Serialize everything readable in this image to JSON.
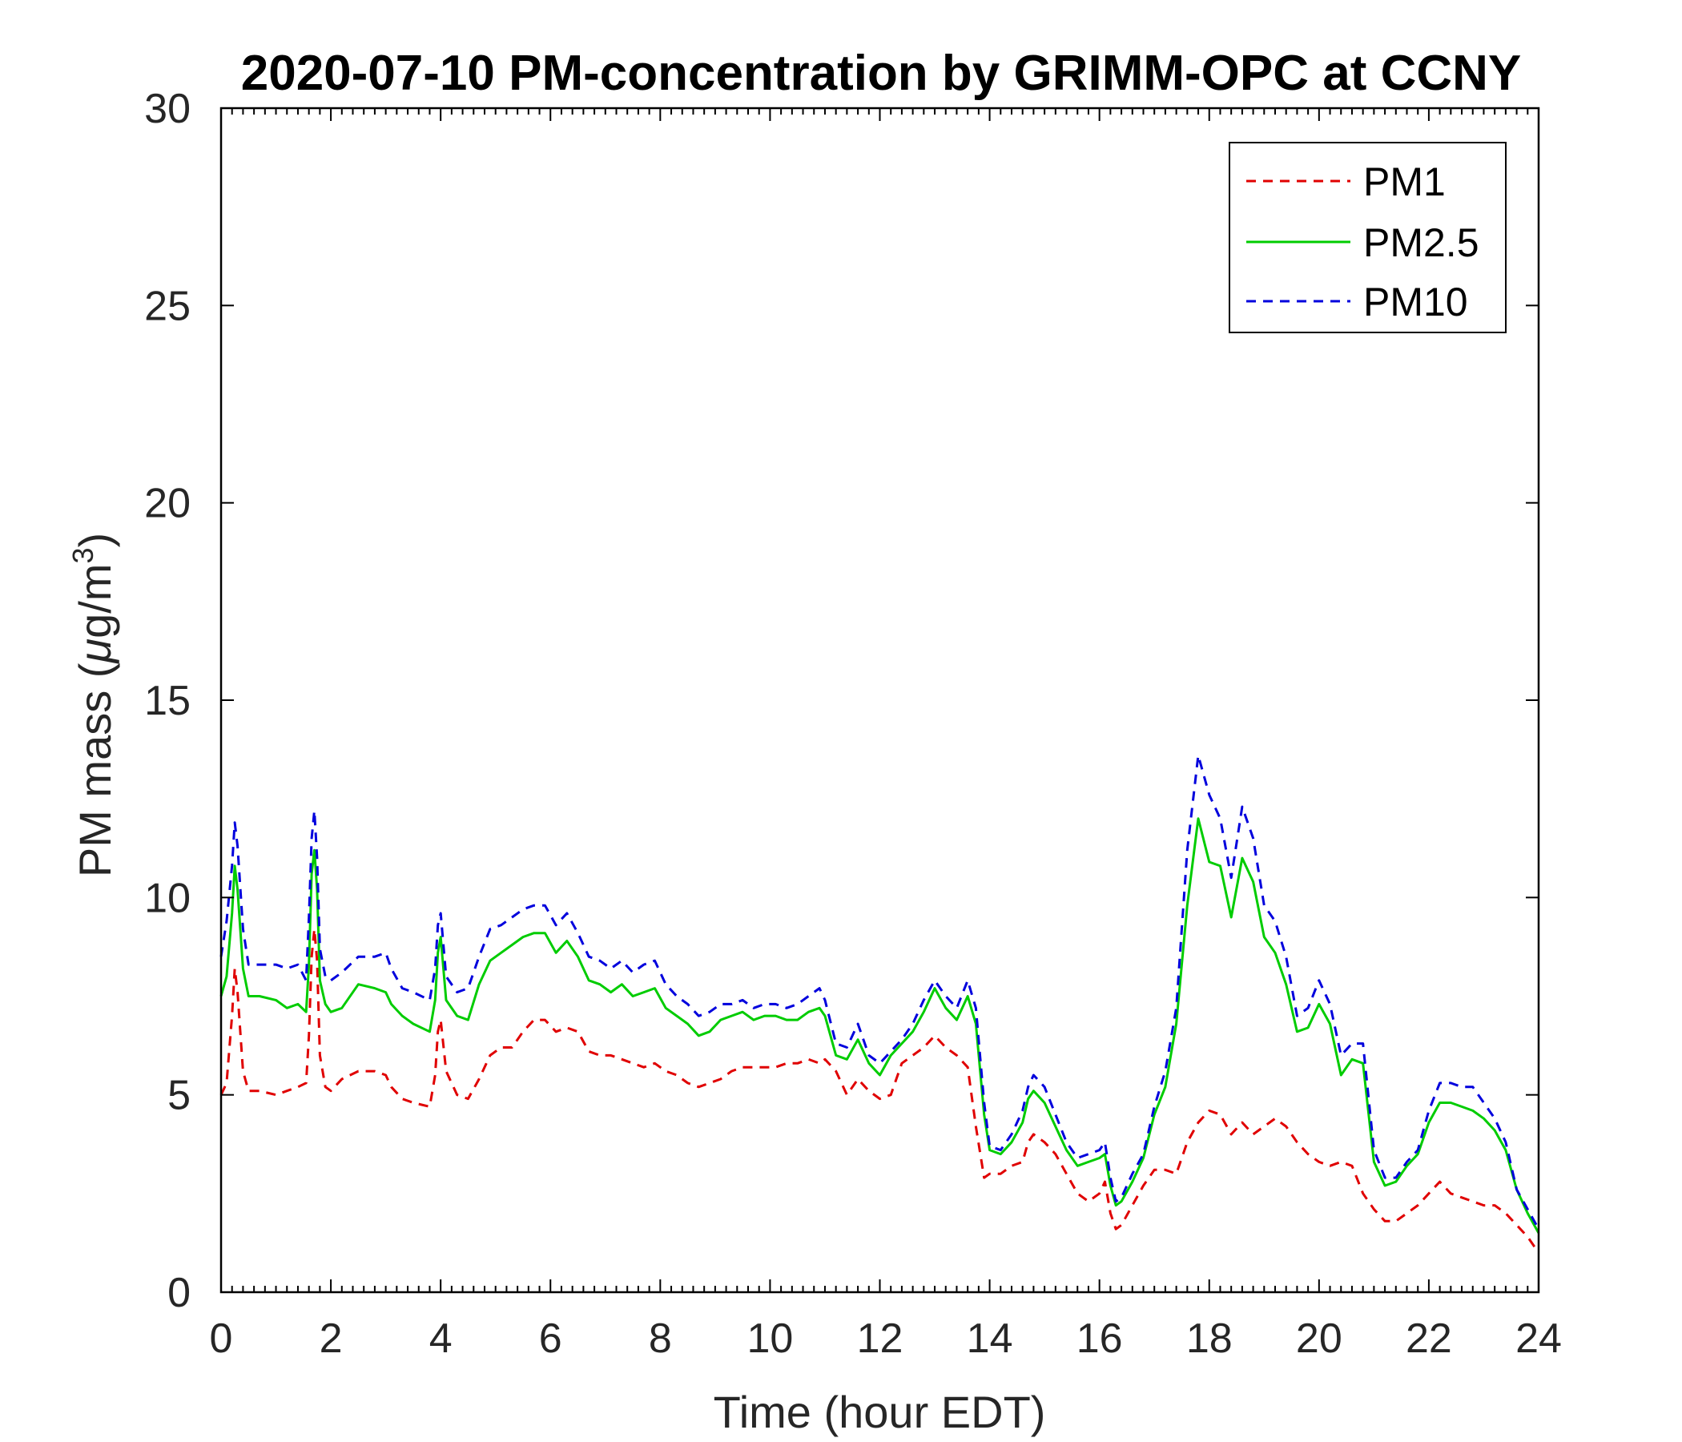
{
  "chart_data": {
    "type": "line",
    "title": "2020-07-10 PM-concentration by GRIMM-OPC at CCNY",
    "xlabel": "Time (hour EDT)",
    "ylabel": "PM mass (",
    "ylabel_mu": "μ",
    "ylabel_unit": "g/m",
    "ylabel_sup": "3",
    "ylabel_close": ")",
    "xlim": [
      0,
      24
    ],
    "ylim": [
      0,
      30
    ],
    "x_ticks": [
      "0",
      "2",
      "4",
      "6",
      "8",
      "10",
      "12",
      "14",
      "16",
      "18",
      "20",
      "22",
      "24"
    ],
    "y_ticks": [
      "0",
      "5",
      "10",
      "15",
      "20",
      "25",
      "30"
    ],
    "grid": false,
    "legend_position": "top-right",
    "series": [
      {
        "name": "PM1",
        "color": "#e00000",
        "style": "dashed",
        "x": [
          0,
          0.1,
          0.2,
          0.25,
          0.3,
          0.4,
          0.5,
          0.7,
          1.0,
          1.2,
          1.4,
          1.55,
          1.6,
          1.65,
          1.7,
          1.75,
          1.8,
          1.9,
          2.0,
          2.2,
          2.5,
          2.8,
          3.0,
          3.1,
          3.3,
          3.5,
          3.8,
          3.9,
          3.95,
          4.0,
          4.1,
          4.3,
          4.5,
          4.7,
          4.9,
          5.1,
          5.3,
          5.5,
          5.7,
          5.9,
          6.1,
          6.3,
          6.5,
          6.7,
          6.9,
          7.1,
          7.3,
          7.5,
          7.7,
          7.9,
          8.1,
          8.3,
          8.5,
          8.7,
          8.9,
          9.1,
          9.3,
          9.5,
          9.7,
          9.9,
          10.1,
          10.3,
          10.5,
          10.7,
          10.9,
          11.0,
          11.2,
          11.4,
          11.6,
          11.8,
          12.0,
          12.2,
          12.4,
          12.6,
          12.8,
          13.0,
          13.2,
          13.4,
          13.6,
          13.75,
          13.9,
          14.0,
          14.2,
          14.4,
          14.6,
          14.7,
          14.8,
          15.0,
          15.2,
          15.4,
          15.6,
          15.8,
          16.0,
          16.1,
          16.2,
          16.3,
          16.4,
          16.6,
          16.8,
          17.0,
          17.2,
          17.4,
          17.6,
          17.8,
          18.0,
          18.2,
          18.4,
          18.6,
          18.8,
          19.0,
          19.2,
          19.4,
          19.6,
          19.8,
          20.0,
          20.2,
          20.4,
          20.6,
          20.8,
          21.0,
          21.2,
          21.4,
          21.6,
          21.8,
          22.0,
          22.2,
          22.4,
          22.6,
          22.8,
          23.0,
          23.2,
          23.4,
          23.6,
          23.8,
          24.0
        ],
        "y": [
          5.0,
          5.3,
          7.0,
          8.2,
          7.6,
          5.6,
          5.1,
          5.1,
          5.0,
          5.1,
          5.2,
          5.3,
          6.5,
          8.5,
          9.2,
          8.4,
          6.0,
          5.2,
          5.1,
          5.4,
          5.6,
          5.6,
          5.5,
          5.2,
          4.9,
          4.8,
          4.7,
          5.5,
          6.6,
          6.9,
          5.6,
          5.0,
          4.9,
          5.4,
          6.0,
          6.2,
          6.2,
          6.6,
          6.9,
          6.9,
          6.6,
          6.7,
          6.6,
          6.1,
          6.0,
          6.0,
          5.9,
          5.8,
          5.7,
          5.8,
          5.6,
          5.5,
          5.3,
          5.2,
          5.3,
          5.4,
          5.6,
          5.7,
          5.7,
          5.7,
          5.7,
          5.8,
          5.8,
          5.9,
          5.8,
          5.9,
          5.6,
          5.0,
          5.4,
          5.1,
          4.9,
          5.0,
          5.8,
          6.0,
          6.2,
          6.5,
          6.2,
          6.0,
          5.7,
          4.2,
          2.9,
          3.0,
          3.0,
          3.2,
          3.3,
          3.8,
          4.0,
          3.8,
          3.5,
          3.0,
          2.5,
          2.3,
          2.5,
          2.8,
          2.0,
          1.6,
          1.7,
          2.2,
          2.7,
          3.1,
          3.1,
          3.0,
          3.8,
          4.3,
          4.6,
          4.5,
          4.0,
          4.3,
          4.0,
          4.2,
          4.4,
          4.2,
          3.8,
          3.5,
          3.3,
          3.2,
          3.3,
          3.2,
          2.5,
          2.1,
          1.8,
          1.8,
          2.0,
          2.2,
          2.5,
          2.8,
          2.5,
          2.4,
          2.3,
          2.2,
          2.2,
          2.0,
          1.7,
          1.4,
          1.0
        ]
      },
      {
        "name": "PM2.5",
        "color": "#00cc00",
        "style": "solid",
        "x": [
          0,
          0.1,
          0.2,
          0.25,
          0.3,
          0.4,
          0.5,
          0.7,
          1.0,
          1.2,
          1.4,
          1.55,
          1.6,
          1.65,
          1.7,
          1.75,
          1.8,
          1.9,
          2.0,
          2.2,
          2.5,
          2.8,
          3.0,
          3.1,
          3.3,
          3.5,
          3.8,
          3.9,
          3.95,
          4.0,
          4.1,
          4.3,
          4.5,
          4.7,
          4.9,
          5.1,
          5.3,
          5.5,
          5.7,
          5.9,
          6.1,
          6.3,
          6.5,
          6.7,
          6.9,
          7.1,
          7.3,
          7.5,
          7.7,
          7.9,
          8.1,
          8.3,
          8.5,
          8.7,
          8.9,
          9.1,
          9.3,
          9.5,
          9.7,
          9.9,
          10.1,
          10.3,
          10.5,
          10.7,
          10.9,
          11.0,
          11.2,
          11.4,
          11.6,
          11.8,
          12.0,
          12.2,
          12.4,
          12.6,
          12.8,
          13.0,
          13.2,
          13.4,
          13.6,
          13.75,
          13.9,
          14.0,
          14.2,
          14.4,
          14.6,
          14.7,
          14.8,
          15.0,
          15.2,
          15.4,
          15.6,
          15.8,
          16.0,
          16.1,
          16.2,
          16.3,
          16.4,
          16.6,
          16.8,
          17.0,
          17.2,
          17.4,
          17.6,
          17.8,
          18.0,
          18.2,
          18.4,
          18.6,
          18.8,
          19.0,
          19.2,
          19.4,
          19.6,
          19.8,
          20.0,
          20.2,
          20.4,
          20.6,
          20.8,
          21.0,
          21.2,
          21.4,
          21.6,
          21.8,
          22.0,
          22.2,
          22.4,
          22.6,
          22.8,
          23.0,
          23.2,
          23.4,
          23.6,
          23.8,
          24.0
        ],
        "y": [
          7.5,
          8.0,
          9.6,
          10.8,
          10.2,
          8.2,
          7.5,
          7.5,
          7.4,
          7.2,
          7.3,
          7.1,
          8.3,
          10.6,
          11.2,
          10.2,
          7.9,
          7.3,
          7.1,
          7.2,
          7.8,
          7.7,
          7.6,
          7.3,
          7.0,
          6.8,
          6.6,
          7.4,
          8.6,
          9.0,
          7.4,
          7.0,
          6.9,
          7.8,
          8.4,
          8.6,
          8.8,
          9.0,
          9.1,
          9.1,
          8.6,
          8.9,
          8.5,
          7.9,
          7.8,
          7.6,
          7.8,
          7.5,
          7.6,
          7.7,
          7.2,
          7.0,
          6.8,
          6.5,
          6.6,
          6.9,
          7.0,
          7.1,
          6.9,
          7.0,
          7.0,
          6.9,
          6.9,
          7.1,
          7.2,
          7.0,
          6.0,
          5.9,
          6.4,
          5.8,
          5.5,
          6.0,
          6.3,
          6.6,
          7.1,
          7.7,
          7.2,
          6.9,
          7.5,
          6.8,
          4.5,
          3.6,
          3.5,
          3.8,
          4.3,
          4.9,
          5.1,
          4.8,
          4.2,
          3.6,
          3.2,
          3.3,
          3.4,
          3.5,
          2.7,
          2.2,
          2.3,
          2.8,
          3.4,
          4.5,
          5.2,
          6.8,
          9.8,
          12.0,
          10.9,
          10.8,
          9.5,
          11.0,
          10.4,
          9.0,
          8.6,
          7.8,
          6.6,
          6.7,
          7.3,
          6.8,
          5.5,
          5.9,
          5.8,
          3.3,
          2.7,
          2.8,
          3.2,
          3.5,
          4.3,
          4.8,
          4.8,
          4.7,
          4.6,
          4.4,
          4.1,
          3.6,
          2.6,
          2.0,
          1.5
        ]
      },
      {
        "name": "PM10",
        "color": "#0000dd",
        "style": "dashed",
        "x": [
          0,
          0.1,
          0.2,
          0.25,
          0.3,
          0.4,
          0.5,
          0.7,
          1.0,
          1.2,
          1.4,
          1.55,
          1.6,
          1.65,
          1.7,
          1.75,
          1.8,
          1.9,
          2.0,
          2.2,
          2.5,
          2.8,
          3.0,
          3.1,
          3.3,
          3.5,
          3.8,
          3.9,
          3.95,
          4.0,
          4.1,
          4.3,
          4.5,
          4.7,
          4.9,
          5.1,
          5.3,
          5.5,
          5.7,
          5.9,
          6.1,
          6.3,
          6.5,
          6.7,
          6.9,
          7.1,
          7.3,
          7.5,
          7.7,
          7.9,
          8.1,
          8.3,
          8.5,
          8.7,
          8.9,
          9.1,
          9.3,
          9.5,
          9.7,
          9.9,
          10.1,
          10.3,
          10.5,
          10.7,
          10.9,
          11.0,
          11.2,
          11.4,
          11.6,
          11.8,
          12.0,
          12.2,
          12.4,
          12.6,
          12.8,
          13.0,
          13.2,
          13.4,
          13.6,
          13.75,
          13.9,
          14.0,
          14.2,
          14.4,
          14.6,
          14.7,
          14.8,
          15.0,
          15.2,
          15.4,
          15.6,
          15.8,
          16.0,
          16.1,
          16.2,
          16.3,
          16.4,
          16.6,
          16.8,
          17.0,
          17.2,
          17.4,
          17.6,
          17.8,
          18.0,
          18.2,
          18.4,
          18.6,
          18.8,
          19.0,
          19.2,
          19.4,
          19.6,
          19.8,
          20.0,
          20.2,
          20.4,
          20.6,
          20.8,
          21.0,
          21.2,
          21.4,
          21.6,
          21.8,
          22.0,
          22.2,
          22.4,
          22.6,
          22.8,
          23.0,
          23.2,
          23.4,
          23.6,
          23.8,
          24.0
        ],
        "y": [
          8.5,
          9.4,
          10.8,
          11.9,
          11.3,
          9.2,
          8.3,
          8.3,
          8.3,
          8.2,
          8.3,
          7.9,
          9.5,
          11.5,
          12.2,
          11.0,
          8.7,
          8.0,
          7.9,
          8.1,
          8.5,
          8.5,
          8.6,
          8.2,
          7.7,
          7.6,
          7.4,
          8.2,
          9.3,
          9.6,
          8.0,
          7.6,
          7.7,
          8.5,
          9.2,
          9.3,
          9.5,
          9.7,
          9.8,
          9.8,
          9.3,
          9.6,
          9.1,
          8.5,
          8.4,
          8.2,
          8.4,
          8.1,
          8.3,
          8.4,
          7.8,
          7.5,
          7.3,
          7.0,
          7.1,
          7.3,
          7.3,
          7.4,
          7.2,
          7.3,
          7.3,
          7.2,
          7.3,
          7.5,
          7.7,
          7.4,
          6.3,
          6.2,
          6.8,
          6.0,
          5.8,
          6.1,
          6.4,
          6.8,
          7.4,
          7.9,
          7.5,
          7.2,
          7.9,
          7.2,
          4.8,
          3.7,
          3.6,
          4.0,
          4.6,
          5.2,
          5.5,
          5.2,
          4.5,
          3.8,
          3.4,
          3.5,
          3.6,
          3.8,
          2.9,
          2.3,
          2.4,
          3.0,
          3.5,
          4.7,
          5.6,
          7.2,
          11.2,
          13.6,
          12.6,
          12.0,
          10.5,
          12.3,
          11.5,
          9.8,
          9.4,
          8.5,
          7.0,
          7.2,
          7.9,
          7.3,
          6.0,
          6.3,
          6.3,
          3.6,
          2.9,
          2.9,
          3.3,
          3.6,
          4.6,
          5.3,
          5.3,
          5.2,
          5.2,
          4.8,
          4.4,
          3.8,
          2.6,
          2.1,
          1.6
        ]
      }
    ]
  }
}
